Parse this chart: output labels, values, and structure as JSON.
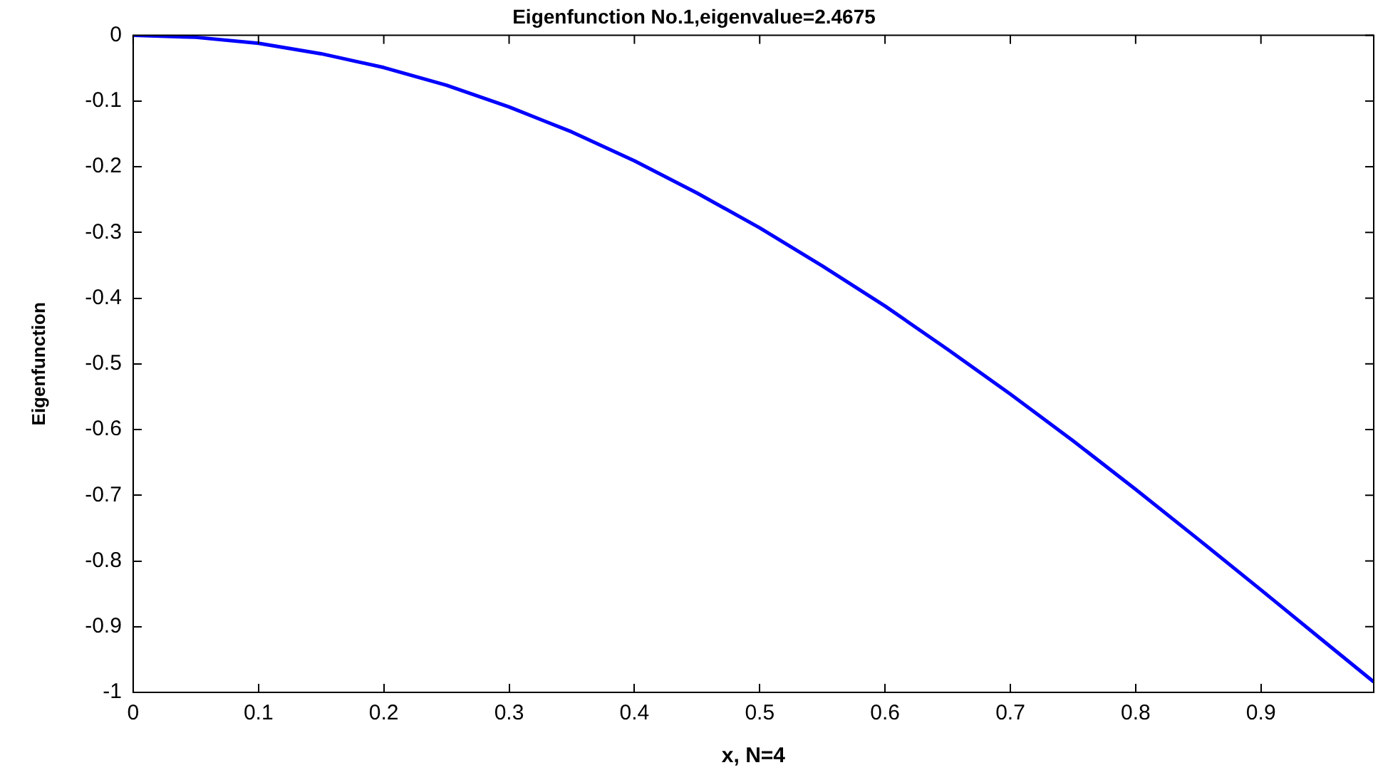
{
  "chart_data": {
    "type": "line",
    "title": "Eigenfunction No.1,eigenvalue=2.4675",
    "xlabel": "x, N=4",
    "ylabel": "Eigenfunction",
    "x": [
      0,
      0.05,
      0.1,
      0.15,
      0.2,
      0.25,
      0.3,
      0.35,
      0.4,
      0.45,
      0.5,
      0.55,
      0.6,
      0.65,
      0.7,
      0.75,
      0.8,
      0.85,
      0.9,
      0.95,
      0.99
    ],
    "series": [
      {
        "color": "#0000ff",
        "values": [
          0,
          -0.003,
          -0.012,
          -0.028,
          -0.049,
          -0.076,
          -0.109,
          -0.147,
          -0.191,
          -0.24,
          -0.293,
          -0.351,
          -0.412,
          -0.478,
          -0.546,
          -0.617,
          -0.691,
          -0.767,
          -0.844,
          -0.922,
          -0.984
        ]
      }
    ],
    "xlim": [
      0,
      0.99
    ],
    "xticks": [
      0,
      0.1,
      0.2,
      0.3,
      0.4,
      0.5,
      0.6,
      0.7,
      0.8,
      0.9
    ],
    "ylim": [
      -1,
      0
    ],
    "yticks": [
      -1,
      -0.9,
      -0.8,
      -0.7,
      -0.6,
      -0.5,
      -0.4,
      -0.3,
      -0.2,
      -0.1,
      0
    ],
    "grid": false,
    "legend": false,
    "marker": "none",
    "line_style": "solid"
  }
}
